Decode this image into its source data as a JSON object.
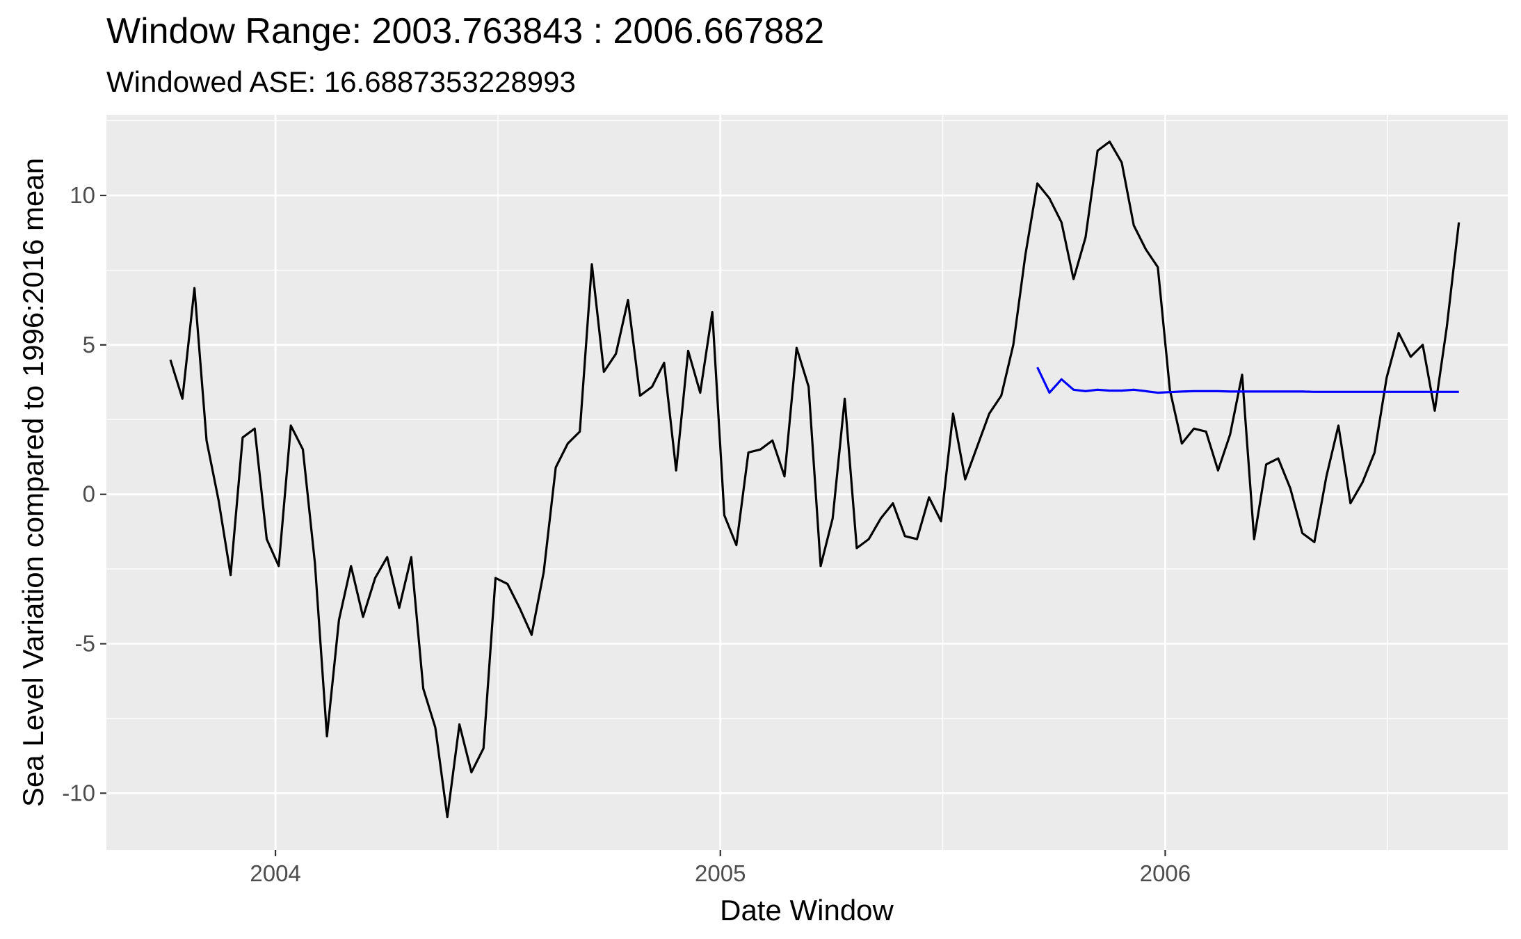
{
  "chart_data": {
    "type": "line",
    "title": "Window Range: 2003.763843 : 2006.667882",
    "subtitle": "Windowed ASE: 16.6887353228993",
    "xlabel": "Date Window",
    "ylabel": "Sea Level Variation compared to 1996:2016 mean",
    "xlim": [
      2003.62,
      2006.77
    ],
    "ylim": [
      -11.9,
      12.7
    ],
    "x_ticks": [
      2004,
      2005,
      2006
    ],
    "x_tick_labels": [
      "2004",
      "2005",
      "2006"
    ],
    "y_ticks": [
      -10,
      -5,
      0,
      5,
      10
    ],
    "y_tick_labels": [
      "-10",
      "-5",
      "0",
      "5",
      "10"
    ],
    "grid": true,
    "background": "#ebebeb",
    "gridline_color": "#ffffff",
    "series": [
      {
        "color": "#000000",
        "x": [
          2003.763843,
          2003.79091,
          2003.817977,
          2003.845044,
          2003.872111,
          2003.899179,
          2003.926246,
          2003.953313,
          2003.98038,
          2004.007447,
          2004.034514,
          2004.061582,
          2004.088649,
          2004.115716,
          2004.142783,
          2004.16985,
          2004.196917,
          2004.223984,
          2004.251052,
          2004.278119,
          2004.305186,
          2004.332253,
          2004.35932,
          2004.386387,
          2004.413454,
          2004.440522,
          2004.467589,
          2004.494656,
          2004.521723,
          2004.54879,
          2004.575857,
          2004.602924,
          2004.629992,
          2004.657059,
          2004.684126,
          2004.711193,
          2004.73826,
          2004.765327,
          2004.792395,
          2004.819462,
          2004.846529,
          2004.873596,
          2004.900663,
          2004.92773,
          2004.954797,
          2004.981865,
          2005.008932,
          2005.035999,
          2005.063066,
          2005.090133,
          2005.1172,
          2005.144267,
          2005.171335,
          2005.198402,
          2005.225469,
          2005.252536,
          2005.279603,
          2005.30667,
          2005.333737,
          2005.360805,
          2005.387872,
          2005.414939,
          2005.442006,
          2005.469073,
          2005.49614,
          2005.523208,
          2005.550275,
          2005.577342,
          2005.604409,
          2005.631476,
          2005.658543,
          2005.68561,
          2005.712678,
          2005.739745,
          2005.766812,
          2005.793879,
          2005.820946,
          2005.848013,
          2005.87508,
          2005.902148,
          2005.929215,
          2005.956282,
          2005.983349,
          2006.010416,
          2006.037483,
          2006.06455,
          2006.091618,
          2006.118685,
          2006.145752,
          2006.172819,
          2006.199886,
          2006.226953,
          2006.254021,
          2006.281088,
          2006.308155,
          2006.335222,
          2006.362289,
          2006.389356,
          2006.416423,
          2006.443491,
          2006.470558,
          2006.497625,
          2006.524692,
          2006.551759,
          2006.578826,
          2006.605893,
          2006.632961,
          2006.660028
        ],
        "values": [
          4.5,
          3.2,
          6.9,
          1.8,
          -0.2,
          -2.7,
          1.9,
          2.2,
          -1.5,
          -2.4,
          2.3,
          1.5,
          -2.3,
          -8.1,
          -4.2,
          -2.4,
          -4.1,
          -2.8,
          -2.1,
          -3.8,
          -2.1,
          -6.5,
          -7.8,
          -10.8,
          -7.7,
          -9.3,
          -8.5,
          -2.8,
          -3.0,
          -3.8,
          -4.7,
          -2.6,
          0.9,
          1.7,
          2.1,
          7.7,
          4.1,
          4.7,
          6.5,
          3.3,
          3.6,
          4.4,
          0.8,
          4.8,
          3.4,
          6.1,
          -0.7,
          -1.7,
          1.4,
          1.5,
          1.8,
          0.6,
          4.9,
          3.6,
          -2.4,
          -0.8,
          3.2,
          -1.8,
          -1.5,
          -0.8,
          -0.3,
          -1.4,
          -1.5,
          -0.1,
          -0.9,
          2.7,
          0.5,
          1.6,
          2.7,
          3.3,
          5.0,
          8.0,
          10.4,
          9.9,
          9.1,
          7.2,
          8.6,
          11.5,
          11.8,
          11.1,
          9.0,
          8.2,
          7.6,
          3.5,
          1.7,
          2.2,
          2.1,
          0.8,
          2.0,
          4.0,
          -1.5,
          1.0,
          1.2,
          0.2,
          -1.3,
          -1.6,
          0.6,
          2.3,
          -0.3,
          0.4,
          1.4,
          3.9,
          5.4,
          4.6,
          5.0,
          2.8,
          5.6,
          9.1
        ]
      },
      {
        "color": "#0000ff",
        "x": [
          2005.712678,
          2005.739745,
          2005.766812,
          2005.793879,
          2005.820946,
          2005.848013,
          2005.87508,
          2005.902148,
          2005.929215,
          2005.956282,
          2005.983349,
          2006.010416,
          2006.037483,
          2006.06455,
          2006.091618,
          2006.118685,
          2006.145752,
          2006.172819,
          2006.199886,
          2006.226953,
          2006.254021,
          2006.281088,
          2006.308155,
          2006.335222,
          2006.362289,
          2006.389356,
          2006.416423,
          2006.443491,
          2006.470558,
          2006.497625,
          2006.524692,
          2006.551759,
          2006.578826,
          2006.605893,
          2006.632961,
          2006.660028
        ],
        "values": [
          4.25,
          3.4,
          3.85,
          3.5,
          3.45,
          3.5,
          3.47,
          3.47,
          3.5,
          3.45,
          3.4,
          3.42,
          3.44,
          3.45,
          3.45,
          3.45,
          3.44,
          3.44,
          3.44,
          3.44,
          3.44,
          3.44,
          3.44,
          3.43,
          3.43,
          3.43,
          3.43,
          3.43,
          3.43,
          3.43,
          3.43,
          3.43,
          3.43,
          3.43,
          3.43,
          3.43
        ]
      }
    ]
  }
}
